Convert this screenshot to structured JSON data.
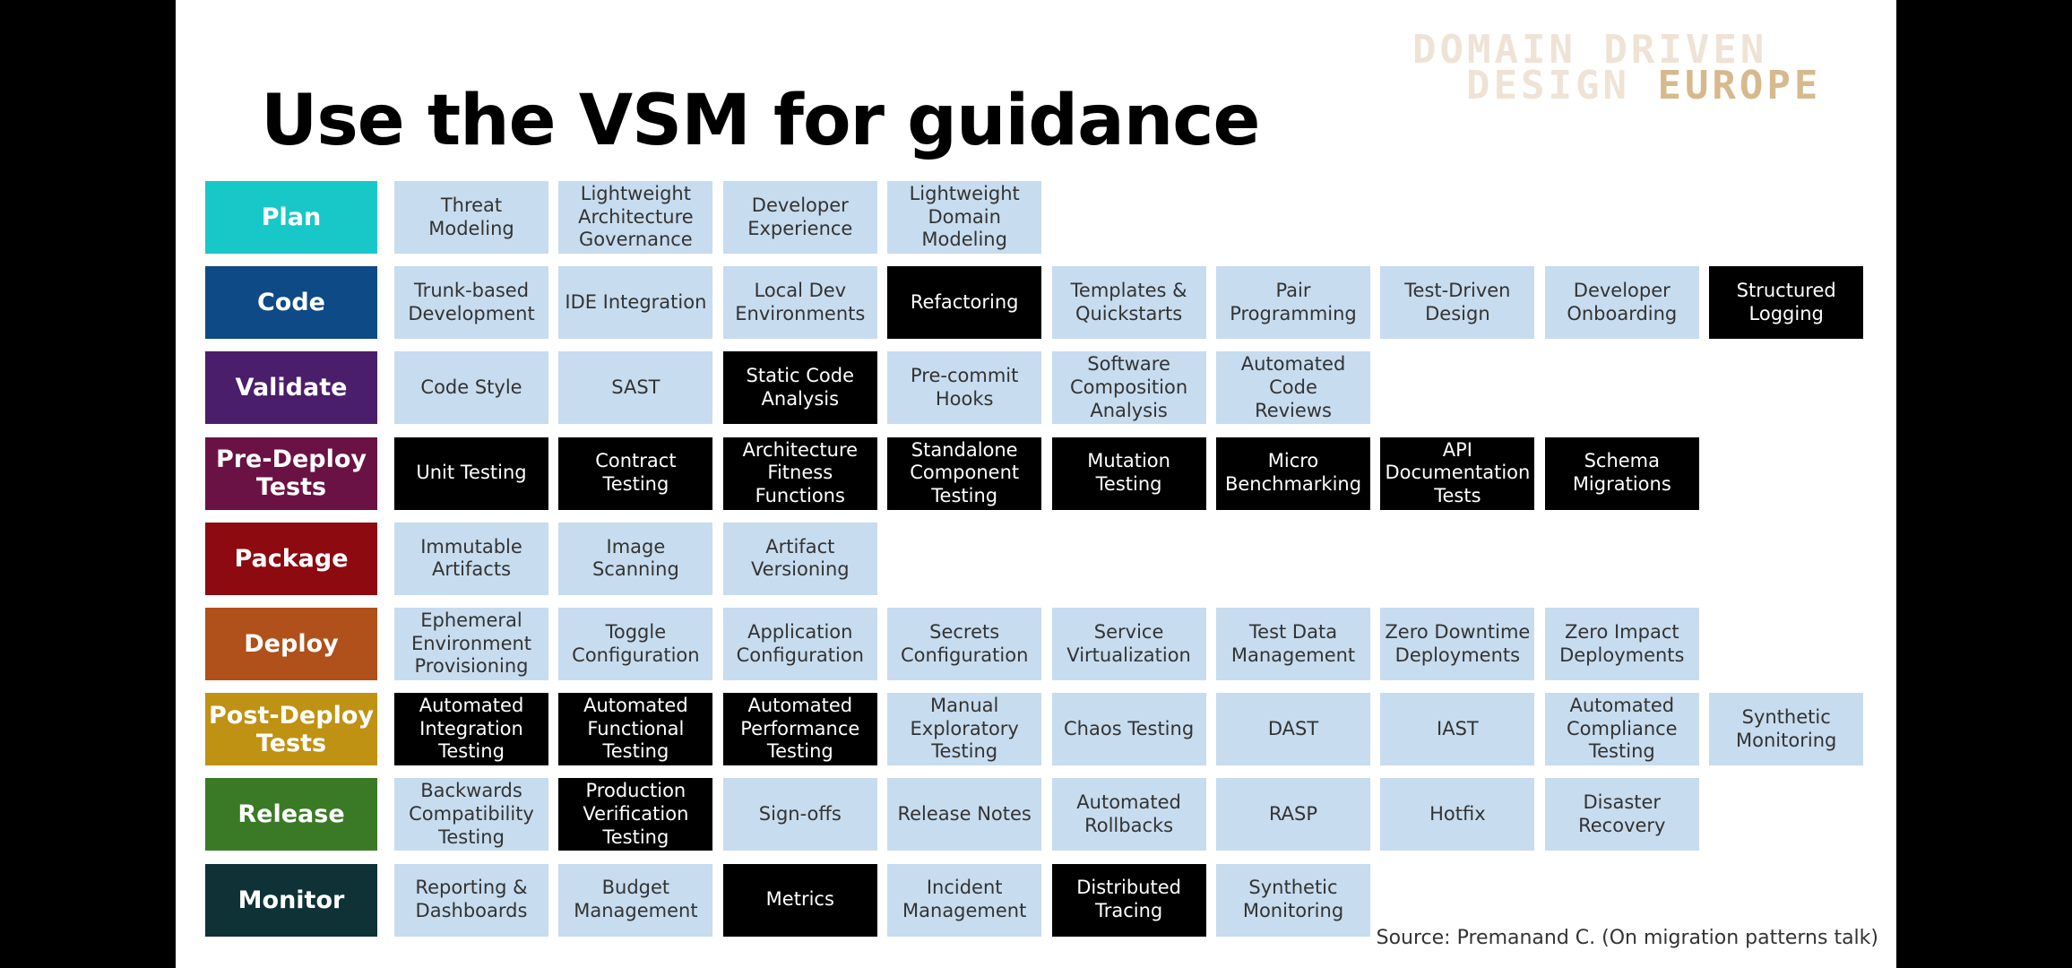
{
  "title": "Use the VSM for guidance",
  "logo": {
    "line1": "DOMAIN DRIVEN",
    "line2_a": "DESIGN",
    "line2_b": "EUROPE"
  },
  "source": "Source: Premanand C. (On migration patterns talk)",
  "colors": {
    "light_cell": "#c7dcef",
    "dark_cell": "#000000",
    "logo_light": "#efe3d6",
    "logo_accent": "#d6b98d"
  },
  "stages": [
    {
      "label": "Plan",
      "color": "#18c8c8",
      "items": [
        {
          "text": "Threat Modeling",
          "dark": false
        },
        {
          "text": "Lightweight\nArchitecture\nGovernance",
          "dark": false
        },
        {
          "text": "Developer\nExperience",
          "dark": false
        },
        {
          "text": "Lightweight\nDomain\nModeling",
          "dark": false
        }
      ]
    },
    {
      "label": "Code",
      "color": "#0d4a86",
      "items": [
        {
          "text": "Trunk-based\nDevelopment",
          "dark": false
        },
        {
          "text": "IDE Integration",
          "dark": false
        },
        {
          "text": "Local Dev\nEnvironments",
          "dark": false
        },
        {
          "text": "Refactoring",
          "dark": true
        },
        {
          "text": "Templates &\nQuickstarts",
          "dark": false
        },
        {
          "text": "Pair\nProgramming",
          "dark": false
        },
        {
          "text": "Test-Driven\nDesign",
          "dark": false
        },
        {
          "text": "Developer\nOnboarding",
          "dark": false
        },
        {
          "text": "Structured\nLogging",
          "dark": true
        }
      ]
    },
    {
      "label": "Validate",
      "color": "#4a1e6a",
      "items": [
        {
          "text": "Code Style",
          "dark": false
        },
        {
          "text": "SAST",
          "dark": false
        },
        {
          "text": "Static Code\nAnalysis",
          "dark": true
        },
        {
          "text": "Pre-commit\nHooks",
          "dark": false
        },
        {
          "text": "Software\nComposition\nAnalysis",
          "dark": false
        },
        {
          "text": "Automated Code\nReviews",
          "dark": false
        }
      ]
    },
    {
      "label": "Pre-Deploy\nTests",
      "color": "#6b1244",
      "items": [
        {
          "text": "Unit Testing",
          "dark": true
        },
        {
          "text": "Contract Testing",
          "dark": true
        },
        {
          "text": "Architecture\nFitness Functions",
          "dark": true
        },
        {
          "text": "Standalone\nComponent\nTesting",
          "dark": true
        },
        {
          "text": "Mutation Testing",
          "dark": true
        },
        {
          "text": "Micro\nBenchmarking",
          "dark": true
        },
        {
          "text": "API\nDocumentation\nTests",
          "dark": true
        },
        {
          "text": "Schema\nMigrations",
          "dark": true
        }
      ]
    },
    {
      "label": "Package",
      "color": "#8c0a10",
      "items": [
        {
          "text": "Immutable\nArtifacts",
          "dark": false
        },
        {
          "text": "Image Scanning",
          "dark": false
        },
        {
          "text": "Artifact\nVersioning",
          "dark": false
        }
      ]
    },
    {
      "label": "Deploy",
      "color": "#b0501a",
      "items": [
        {
          "text": "Ephemeral\nEnvironment\nProvisioning",
          "dark": false
        },
        {
          "text": "Toggle\nConfiguration",
          "dark": false
        },
        {
          "text": "Application\nConfiguration",
          "dark": false
        },
        {
          "text": "Secrets\nConfiguration",
          "dark": false
        },
        {
          "text": "Service\nVirtualization",
          "dark": false
        },
        {
          "text": "Test Data\nManagement",
          "dark": false
        },
        {
          "text": "Zero Downtime\nDeployments",
          "dark": false
        },
        {
          "text": "Zero Impact\nDeployments",
          "dark": false
        }
      ]
    },
    {
      "label": "Post-Deploy\nTests",
      "color": "#c09213",
      "items": [
        {
          "text": "Automated\nIntegration\nTesting",
          "dark": true
        },
        {
          "text": "Automated\nFunctional\nTesting",
          "dark": true
        },
        {
          "text": "Automated\nPerformance\nTesting",
          "dark": true
        },
        {
          "text": "Manual\nExploratory\nTesting",
          "dark": false
        },
        {
          "text": "Chaos Testing",
          "dark": false
        },
        {
          "text": "DAST",
          "dark": false
        },
        {
          "text": "IAST",
          "dark": false
        },
        {
          "text": "Automated\nCompliance\nTesting",
          "dark": false
        },
        {
          "text": "Synthetic\nMonitoring",
          "dark": false
        }
      ]
    },
    {
      "label": "Release",
      "color": "#3a7a26",
      "items": [
        {
          "text": "Backwards\nCompatibility\nTesting",
          "dark": false
        },
        {
          "text": "Production\nVerification\nTesting",
          "dark": true
        },
        {
          "text": "Sign-offs",
          "dark": false
        },
        {
          "text": "Release Notes",
          "dark": false
        },
        {
          "text": "Automated\nRollbacks",
          "dark": false
        },
        {
          "text": "RASP",
          "dark": false
        },
        {
          "text": "Hotfix",
          "dark": false
        },
        {
          "text": "Disaster\nRecovery",
          "dark": false
        }
      ]
    },
    {
      "label": "Monitor",
      "color": "#0f3236",
      "items": [
        {
          "text": "Reporting &\nDashboards",
          "dark": false
        },
        {
          "text": "Budget\nManagement",
          "dark": false
        },
        {
          "text": "Metrics",
          "dark": true
        },
        {
          "text": "Incident\nManagement",
          "dark": false
        },
        {
          "text": "Distributed\nTracing",
          "dark": true
        },
        {
          "text": "Synthetic\nMonitoring",
          "dark": false
        }
      ]
    }
  ]
}
